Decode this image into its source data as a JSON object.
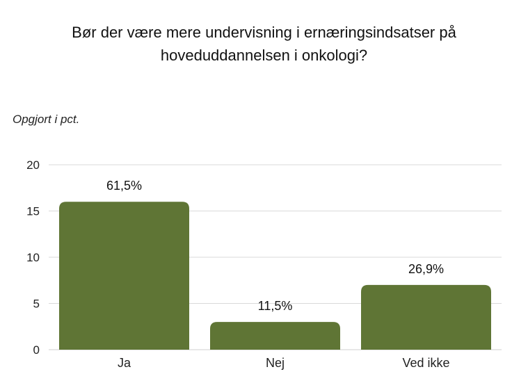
{
  "chart_data": {
    "type": "bar",
    "title_lines": [
      "Bør der være mere undervisning i ernæringsindsatser på",
      "hoveduddannelsen i onkologi?"
    ],
    "subtitle": "Opgjort i pct.",
    "categories": [
      "Ja",
      "Nej",
      "Ved ikke"
    ],
    "values": [
      16,
      3,
      7
    ],
    "data_labels": [
      "61,5%",
      "11,5%",
      "26,9%"
    ],
    "yticks": [
      0,
      5,
      10,
      15,
      20
    ],
    "ylim": [
      0,
      20
    ],
    "grid": true,
    "bar_color": "#5f7535",
    "grid_color": "#d9d9d9"
  }
}
